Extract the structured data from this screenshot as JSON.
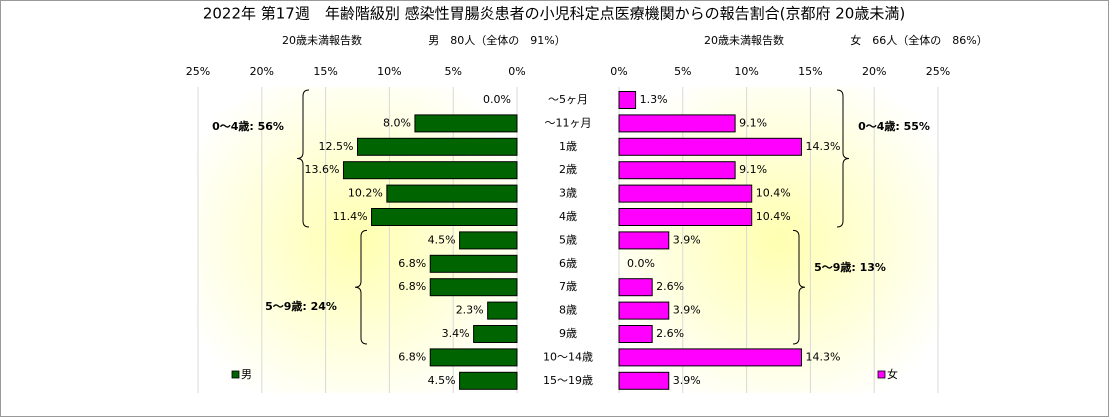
{
  "chart_data": {
    "type": "bar",
    "title": "2022年 第17週　年齢階級別 感染性胃腸炎患者の小児科定点医療機関からの報告割合(京都府 20歳未満)",
    "categories": [
      "～5ヶ月",
      "～11ヶ月",
      "1歳",
      "2歳",
      "3歳",
      "4歳",
      "5歳",
      "6歳",
      "7歳",
      "8歳",
      "9歳",
      "10～14歳",
      "15～19歳"
    ],
    "xlim": [
      0,
      25
    ],
    "xticks": [
      {
        "value": 0,
        "label": "0%"
      },
      {
        "value": 5,
        "label": "5%"
      },
      {
        "value": 10,
        "label": "10%"
      },
      {
        "value": 15,
        "label": "15%"
      },
      {
        "value": 20,
        "label": "20%"
      },
      {
        "value": 25,
        "label": "25%"
      }
    ],
    "grid": true,
    "series": [
      {
        "name": "男",
        "color": "#006400",
        "count_label": "20歳未満報告数",
        "summary": "男　80人（全体の　91%）",
        "values": [
          0.0,
          8.0,
          12.5,
          13.6,
          10.2,
          11.4,
          4.5,
          6.8,
          6.8,
          2.3,
          3.4,
          6.8,
          4.5
        ],
        "value_labels": [
          "0.0%",
          "8.0%",
          "12.5%",
          "13.6%",
          "10.2%",
          "11.4%",
          "4.5%",
          "6.8%",
          "6.8%",
          "2.3%",
          "3.4%",
          "6.8%",
          "4.5%"
        ],
        "annotations": [
          "0～4歳: 56%",
          "5～9歳: 24%"
        ]
      },
      {
        "name": "女",
        "color": "#ff00ff",
        "count_label": "20歳未満報告数",
        "summary": "女　66人（全体の　86%）",
        "values": [
          1.3,
          9.1,
          14.3,
          9.1,
          10.4,
          10.4,
          3.9,
          0.0,
          2.6,
          3.9,
          2.6,
          14.3,
          3.9
        ],
        "value_labels": [
          "1.3%",
          "9.1%",
          "14.3%",
          "9.1%",
          "10.4%",
          "10.4%",
          "3.9%",
          "0.0%",
          "2.6%",
          "3.9%",
          "2.6%",
          "14.3%",
          "3.9%"
        ],
        "annotations": [
          "0～4歳: 55%",
          "5～9歳: 13%"
        ]
      }
    ]
  }
}
